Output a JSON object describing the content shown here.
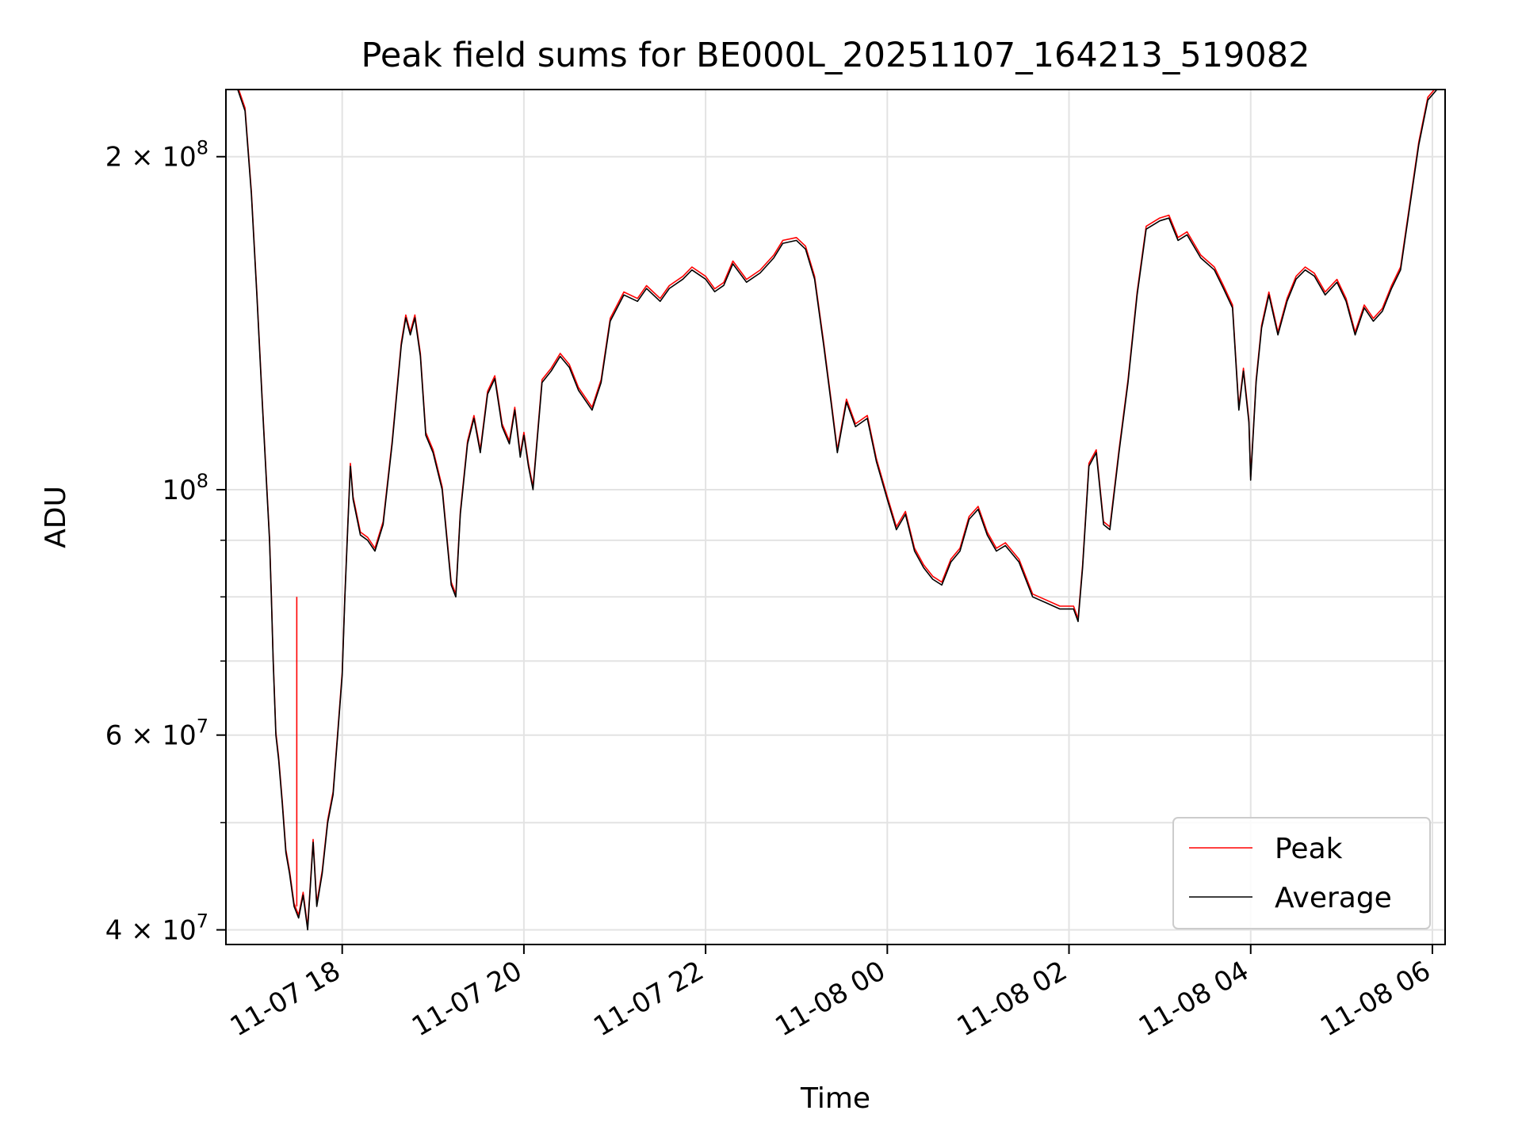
{
  "chart_data": {
    "type": "line",
    "title": "Peak field sums for BE000L_20251107_164213_519082",
    "xlabel": "Time",
    "ylabel": "ADU",
    "yscale": "log",
    "grid": true,
    "legend_position": "lower-right",
    "x_domain_hours": [
      16.72,
      30.14
    ],
    "ylim": [
      38800000,
      230000000
    ],
    "x_ticks": [
      {
        "hour": 18,
        "label": "11-07 18"
      },
      {
        "hour": 20,
        "label": "11-07 20"
      },
      {
        "hour": 22,
        "label": "11-07 22"
      },
      {
        "hour": 24,
        "label": "11-08 00"
      },
      {
        "hour": 26,
        "label": "11-08 02"
      },
      {
        "hour": 28,
        "label": "11-08 04"
      },
      {
        "hour": 30,
        "label": "11-08 06"
      }
    ],
    "y_major_ticks": [
      {
        "value": 40000000,
        "base": "4 × 10",
        "exp": "7"
      },
      {
        "value": 60000000,
        "base": "6 × 10",
        "exp": "7"
      },
      {
        "value": 100000000,
        "base": "10",
        "exp": "8"
      },
      {
        "value": 200000000,
        "base": "2 × 10",
        "exp": "8"
      }
    ],
    "y_minor_ticks": [
      50000000,
      70000000,
      80000000,
      90000000
    ],
    "series": [
      {
        "name": "Peak",
        "color": "#ff0000"
      },
      {
        "name": "Average",
        "color": "#000000"
      }
    ],
    "average_points": [
      [
        16.85,
        230000000
      ],
      [
        16.93,
        220000000
      ],
      [
        17.0,
        185000000
      ],
      [
        17.06,
        150000000
      ],
      [
        17.12,
        120000000
      ],
      [
        17.17,
        100000000
      ],
      [
        17.2,
        90000000
      ],
      [
        17.22,
        80000000
      ],
      [
        17.24,
        70000000
      ],
      [
        17.27,
        60000000
      ],
      [
        17.3,
        57000000
      ],
      [
        17.34,
        52000000
      ],
      [
        17.38,
        47000000
      ],
      [
        17.42,
        45000000
      ],
      [
        17.47,
        42000000
      ],
      [
        17.52,
        41000000
      ],
      [
        17.57,
        43000000
      ],
      [
        17.62,
        40000000
      ],
      [
        17.68,
        48000000
      ],
      [
        17.72,
        42000000
      ],
      [
        17.78,
        45000000
      ],
      [
        17.84,
        50000000
      ],
      [
        17.9,
        53000000
      ],
      [
        17.95,
        60000000
      ],
      [
        18.0,
        68000000
      ],
      [
        18.03,
        80000000
      ],
      [
        18.06,
        92000000
      ],
      [
        18.09,
        105000000
      ],
      [
        18.12,
        98000000
      ],
      [
        18.2,
        91000000
      ],
      [
        18.28,
        90000000
      ],
      [
        18.36,
        88000000
      ],
      [
        18.45,
        93000000
      ],
      [
        18.55,
        110000000
      ],
      [
        18.65,
        135000000
      ],
      [
        18.7,
        143000000
      ],
      [
        18.75,
        138000000
      ],
      [
        18.8,
        143000000
      ],
      [
        18.86,
        132000000
      ],
      [
        18.92,
        112000000
      ],
      [
        19.0,
        108000000
      ],
      [
        19.1,
        100000000
      ],
      [
        19.2,
        82000000
      ],
      [
        19.25,
        80000000
      ],
      [
        19.3,
        95000000
      ],
      [
        19.38,
        110000000
      ],
      [
        19.45,
        116000000
      ],
      [
        19.52,
        108000000
      ],
      [
        19.6,
        122000000
      ],
      [
        19.68,
        126000000
      ],
      [
        19.76,
        114000000
      ],
      [
        19.84,
        110000000
      ],
      [
        19.9,
        118000000
      ],
      [
        19.96,
        107000000
      ],
      [
        20.0,
        112000000
      ],
      [
        20.05,
        105000000
      ],
      [
        20.1,
        100000000
      ],
      [
        20.2,
        125000000
      ],
      [
        20.3,
        128000000
      ],
      [
        20.4,
        132000000
      ],
      [
        20.5,
        129000000
      ],
      [
        20.6,
        123000000
      ],
      [
        20.75,
        118000000
      ],
      [
        20.85,
        125000000
      ],
      [
        20.95,
        142000000
      ],
      [
        21.1,
        150000000
      ],
      [
        21.25,
        148000000
      ],
      [
        21.35,
        152000000
      ],
      [
        21.5,
        148000000
      ],
      [
        21.6,
        152000000
      ],
      [
        21.75,
        155000000
      ],
      [
        21.85,
        158000000
      ],
      [
        22.0,
        155000000
      ],
      [
        22.1,
        151000000
      ],
      [
        22.2,
        153000000
      ],
      [
        22.3,
        160000000
      ],
      [
        22.45,
        154000000
      ],
      [
        22.6,
        157000000
      ],
      [
        22.75,
        162000000
      ],
      [
        22.85,
        167000000
      ],
      [
        23.0,
        168000000
      ],
      [
        23.1,
        165000000
      ],
      [
        23.2,
        155000000
      ],
      [
        23.3,
        135000000
      ],
      [
        23.38,
        120000000
      ],
      [
        23.45,
        108000000
      ],
      [
        23.55,
        120000000
      ],
      [
        23.65,
        114000000
      ],
      [
        23.78,
        116000000
      ],
      [
        23.88,
        106000000
      ],
      [
        24.0,
        98000000
      ],
      [
        24.1,
        92000000
      ],
      [
        24.2,
        95000000
      ],
      [
        24.3,
        88000000
      ],
      [
        24.4,
        85000000
      ],
      [
        24.5,
        83000000
      ],
      [
        24.6,
        82000000
      ],
      [
        24.7,
        86000000
      ],
      [
        24.8,
        88000000
      ],
      [
        24.9,
        94000000
      ],
      [
        25.0,
        96000000
      ],
      [
        25.1,
        91000000
      ],
      [
        25.2,
        88000000
      ],
      [
        25.3,
        89000000
      ],
      [
        25.45,
        86000000
      ],
      [
        25.6,
        80000000
      ],
      [
        25.75,
        79000000
      ],
      [
        25.9,
        78000000
      ],
      [
        26.05,
        78000000
      ],
      [
        26.1,
        76000000
      ],
      [
        26.15,
        85000000
      ],
      [
        26.22,
        105000000
      ],
      [
        26.3,
        108000000
      ],
      [
        26.38,
        93000000
      ],
      [
        26.45,
        92000000
      ],
      [
        26.55,
        108000000
      ],
      [
        26.65,
        125000000
      ],
      [
        26.75,
        150000000
      ],
      [
        26.85,
        172000000
      ],
      [
        27.0,
        175000000
      ],
      [
        27.1,
        176000000
      ],
      [
        27.2,
        168000000
      ],
      [
        27.3,
        170000000
      ],
      [
        27.45,
        162000000
      ],
      [
        27.6,
        158000000
      ],
      [
        27.7,
        152000000
      ],
      [
        27.8,
        146000000
      ],
      [
        27.87,
        118000000
      ],
      [
        27.92,
        128000000
      ],
      [
        27.98,
        115000000
      ],
      [
        28.0,
        102000000
      ],
      [
        28.06,
        125000000
      ],
      [
        28.12,
        140000000
      ],
      [
        28.2,
        150000000
      ],
      [
        28.3,
        138000000
      ],
      [
        28.4,
        148000000
      ],
      [
        28.5,
        155000000
      ],
      [
        28.6,
        158000000
      ],
      [
        28.7,
        156000000
      ],
      [
        28.82,
        150000000
      ],
      [
        28.95,
        154000000
      ],
      [
        29.05,
        148000000
      ],
      [
        29.15,
        138000000
      ],
      [
        29.25,
        146000000
      ],
      [
        29.35,
        142000000
      ],
      [
        29.45,
        145000000
      ],
      [
        29.55,
        152000000
      ],
      [
        29.65,
        158000000
      ],
      [
        29.75,
        180000000
      ],
      [
        29.85,
        205000000
      ],
      [
        29.95,
        225000000
      ],
      [
        30.05,
        230000000
      ],
      [
        30.14,
        230000000
      ]
    ],
    "peak_spike": {
      "hour": 17.5,
      "from": 42000000,
      "to": 80000000
    },
    "legend": [
      {
        "label": "Peak",
        "color": "#ff0000"
      },
      {
        "label": "Average",
        "color": "#000000"
      }
    ]
  }
}
